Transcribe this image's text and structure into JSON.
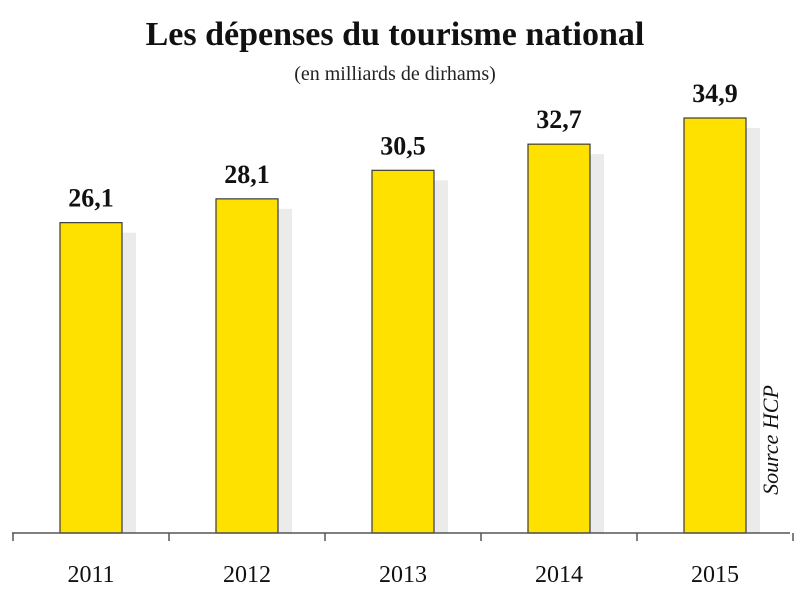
{
  "chart_data": {
    "type": "bar",
    "title": "Les dépenses du tourisme national",
    "subtitle": "(en milliards de dirhams)",
    "categories": [
      "2011",
      "2012",
      "2013",
      "2014",
      "2015"
    ],
    "values": [
      26.1,
      28.1,
      30.5,
      32.7,
      34.9
    ],
    "value_labels": [
      "26,1",
      "28,1",
      "30,5",
      "32,7",
      "34,9"
    ],
    "source": "Source HCP",
    "xlabel": "",
    "ylabel": "",
    "ylim": [
      0,
      38
    ],
    "grid": false,
    "legend": "none",
    "colors": {
      "bar_fill": "#ffe100",
      "bar_stroke": "#3a3a3a",
      "axis": "#555555",
      "background": "#ffffff"
    }
  }
}
